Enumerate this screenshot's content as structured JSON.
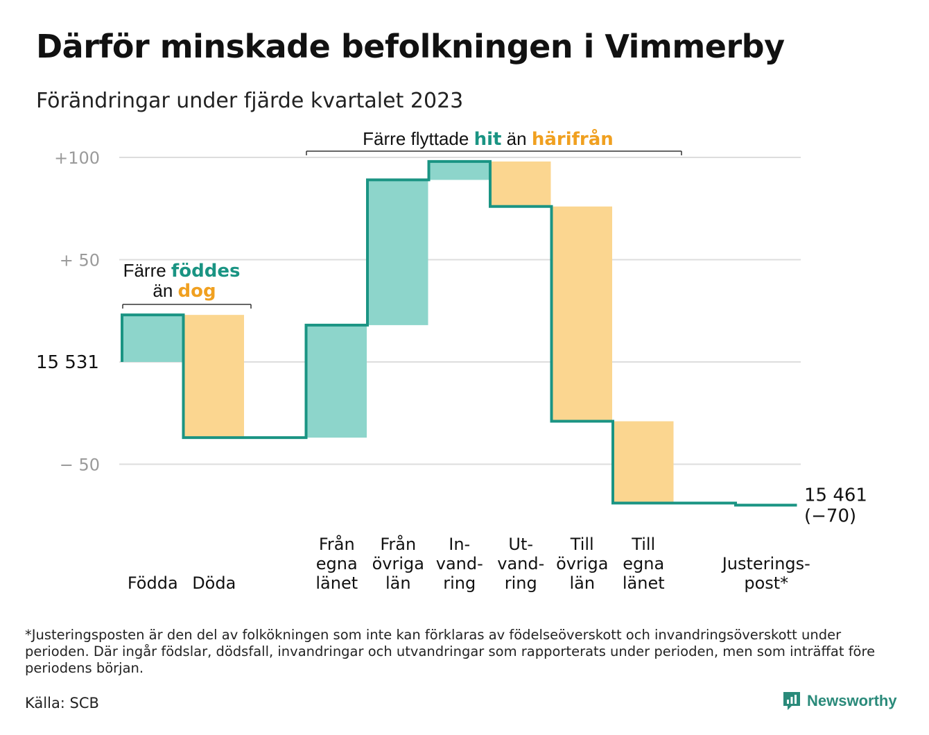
{
  "title": "Därför minskade befolkningen i Vimmerby",
  "subtitle": "Förändringar under fjärde kvartalet 2023",
  "colors": {
    "inflow": "#8dd5cb",
    "outflow": "#fbd690",
    "line": "#1a9483",
    "teal_text": "#1a9483",
    "orange_text": "#f0a020",
    "grid": "#dddddd"
  },
  "annotations": {
    "births": {
      "line1_a": "Färre",
      "line1_b": "föddes",
      "line2_a": "än",
      "line2_b": "dog"
    },
    "moves": {
      "a": "Färre flyttade",
      "b": "hit",
      "c": "än",
      "d": "härifrån"
    }
  },
  "footnote": "*Justeringsposten är den del av folkökningen som inte kan förklaras av födelseöverskott och invandringsöverskott under perioden. Där ingår födslar, dödsfall, invandringar och utvandringar som rapporterats under perioden, men som inträffat före periodens början.",
  "source": "Källa: SCB",
  "brand": "Newsworthy",
  "chart_data": {
    "type": "waterfall",
    "start_label": "15  531",
    "end_label_1": "15 461",
    "end_label_2": "(−70)",
    "start_value": 15531,
    "end_value": 15461,
    "total_change": -70,
    "y_ticks": [
      {
        "value": 100,
        "label": "+100"
      },
      {
        "value": 50,
        "label": "+  50"
      },
      {
        "value": -50,
        "label": "−  50"
      }
    ],
    "ylim": [
      -70,
      100
    ],
    "categories": [
      {
        "lines": [
          "Födda"
        ],
        "change": 23,
        "kind": "inflow"
      },
      {
        "lines": [
          "Döda"
        ],
        "change": -60,
        "kind": "outflow"
      },
      {
        "lines": [],
        "change": 0,
        "kind": "gap"
      },
      {
        "lines": [
          "Från",
          "egna",
          "länet"
        ],
        "change": 55,
        "kind": "inflow"
      },
      {
        "lines": [
          "Från",
          "övriga",
          "län"
        ],
        "change": 71,
        "kind": "inflow"
      },
      {
        "lines": [
          "In-",
          "vand-",
          "ring"
        ],
        "change": 9,
        "kind": "inflow"
      },
      {
        "lines": [
          "Ut-",
          "vand-",
          "ring"
        ],
        "change": -22,
        "kind": "outflow"
      },
      {
        "lines": [
          "Till",
          "övriga",
          "län"
        ],
        "change": -105,
        "kind": "outflow"
      },
      {
        "lines": [
          "Till",
          "egna",
          "länet"
        ],
        "change": -40,
        "kind": "outflow"
      },
      {
        "lines": [],
        "change": 0,
        "kind": "gap"
      },
      {
        "lines": [
          "Justerings-",
          "post*"
        ],
        "change": -1,
        "kind": "line"
      }
    ]
  }
}
